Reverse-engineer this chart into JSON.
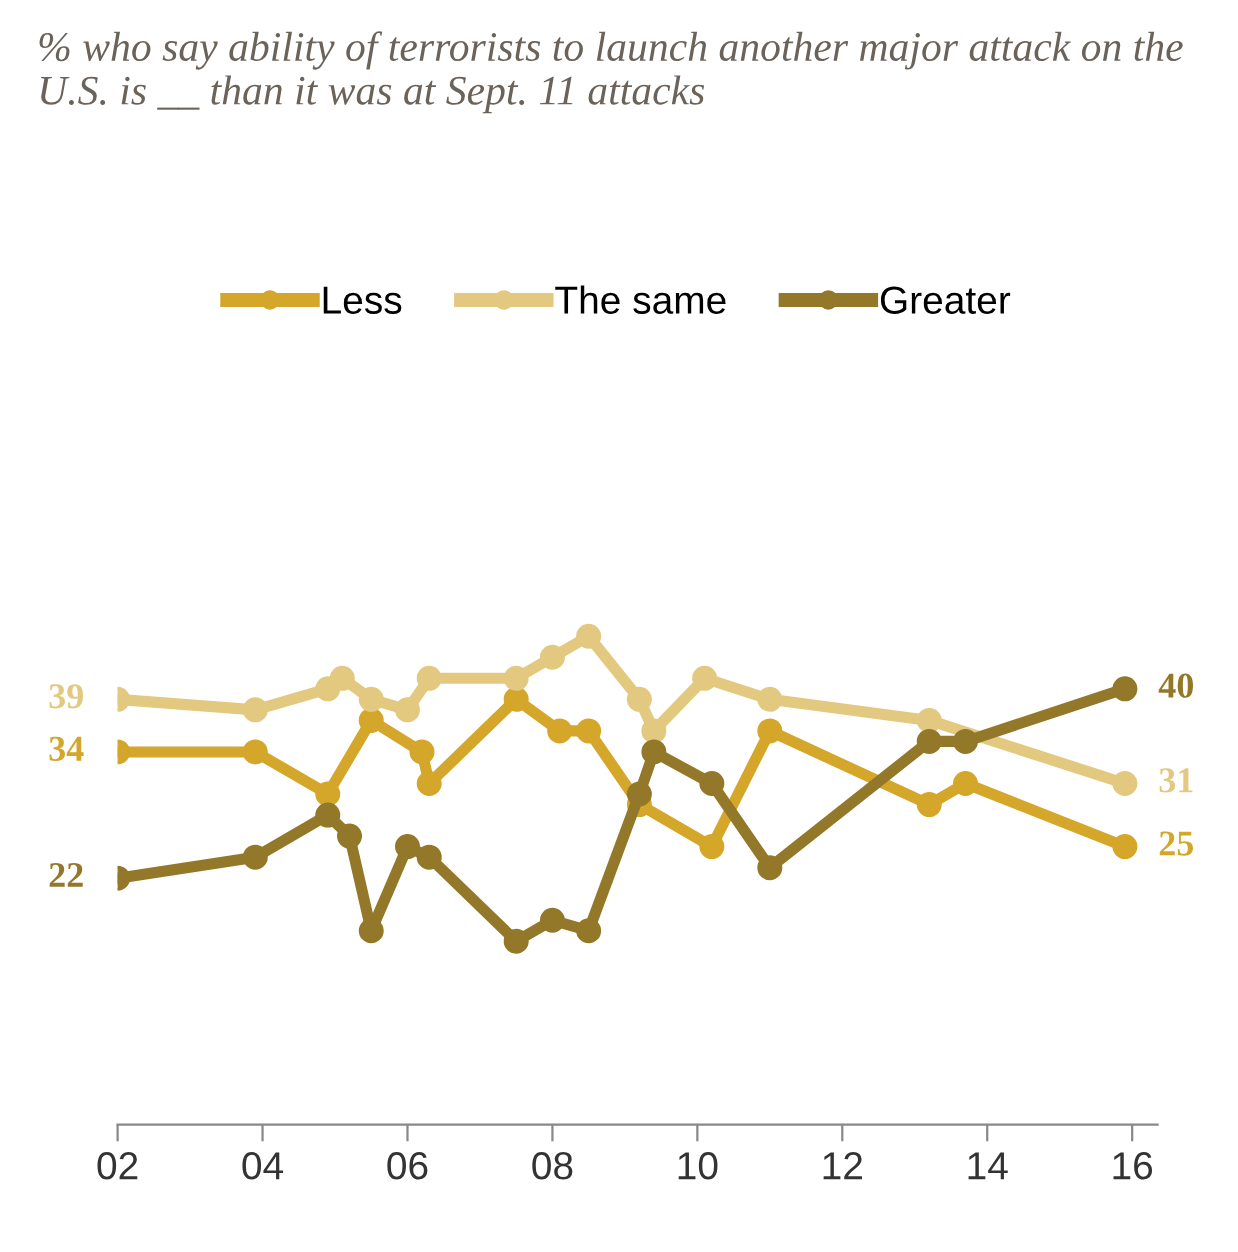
{
  "chart_data": {
    "type": "line",
    "title": "% who say ability of terrorists to launch another major attack on the U.S. is __ than it was at Sept. 11 attacks",
    "xlim": [
      2,
      16.35
    ],
    "xticks": [
      {
        "value": 2,
        "label": "02"
      },
      {
        "value": 4,
        "label": "04"
      },
      {
        "value": 6,
        "label": "06"
      },
      {
        "value": 8,
        "label": "08"
      },
      {
        "value": 10,
        "label": "10"
      },
      {
        "value": 12,
        "label": "12"
      },
      {
        "value": 14,
        "label": "14"
      },
      {
        "value": 16,
        "label": "16"
      }
    ],
    "tick_labels": "x",
    "grid": false,
    "legend": "top",
    "marker": "circle",
    "line_style": "solid",
    "series": [
      {
        "name": "Less",
        "color": "#d4a62a",
        "x": [
          2,
          3.9,
          4.9,
          5.5,
          6.2,
          6.3,
          7.5,
          8.1,
          8.5,
          9.2,
          10.2,
          11,
          13.2,
          13.7,
          15.9
        ],
        "values": [
          34,
          34,
          30,
          37,
          34,
          31,
          39,
          36,
          36,
          29,
          25,
          36,
          29,
          31,
          25
        ],
        "value_labels": [
          "34",
          null,
          null,
          null,
          null,
          null,
          null,
          null,
          null,
          null,
          null,
          null,
          null,
          null,
          "25"
        ]
      },
      {
        "name": "The same",
        "color": "#e3c97f",
        "x": [
          2,
          3.9,
          4.9,
          5.1,
          5.5,
          6,
          6.3,
          7.5,
          8,
          8.5,
          9.2,
          9.4,
          10.1,
          11,
          13.2,
          15.9
        ],
        "values": [
          39,
          38,
          40,
          41,
          39,
          38,
          41,
          41,
          43,
          45,
          39,
          36,
          41,
          39,
          37,
          31
        ],
        "value_labels": [
          "39",
          null,
          null,
          null,
          null,
          null,
          null,
          null,
          null,
          null,
          null,
          null,
          null,
          null,
          null,
          "31"
        ]
      },
      {
        "name": "Greater",
        "color": "#94782a",
        "x": [
          2,
          3.9,
          4.9,
          5.2,
          5.5,
          6,
          6.3,
          7.5,
          8,
          8.5,
          9.2,
          9.4,
          10.2,
          11,
          13.2,
          13.7,
          15.9
        ],
        "values": [
          22,
          24,
          28,
          26,
          17,
          25,
          24,
          16,
          18,
          17,
          30,
          34,
          31,
          23,
          35,
          35,
          40
        ],
        "value_labels": [
          "22",
          null,
          null,
          null,
          null,
          null,
          null,
          null,
          null,
          null,
          null,
          null,
          null,
          null,
          null,
          null,
          "40"
        ]
      }
    ]
  }
}
